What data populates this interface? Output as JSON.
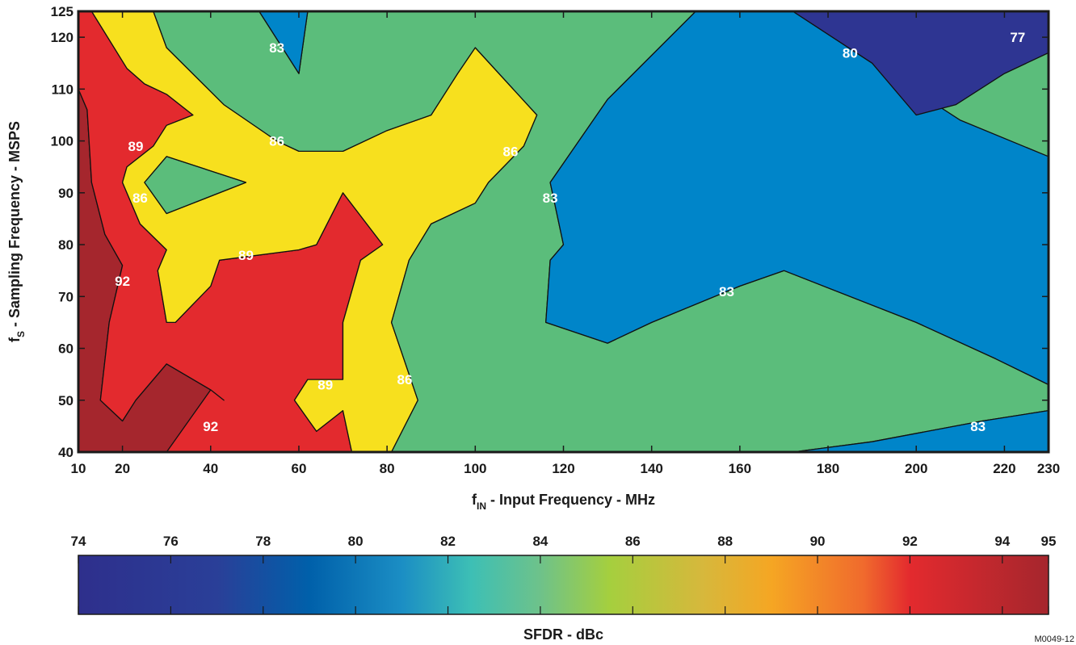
{
  "chart_data": {
    "type": "contour",
    "x_axis": {
      "label_main": "f",
      "label_sub": "IN",
      "label_rest": " - Input Frequency - MHz",
      "range": [
        10,
        230
      ],
      "ticks": [
        10,
        20,
        40,
        60,
        80,
        100,
        120,
        140,
        160,
        180,
        200,
        220,
        230
      ],
      "tick_labels": [
        "10",
        "20",
        "40",
        "60",
        "80",
        "100",
        "120",
        "140",
        "160",
        "180",
        "200",
        "220",
        "230"
      ]
    },
    "y_axis": {
      "label_main": "f",
      "label_sub": "S",
      "label_rest": " - Sampling Frequency - MSPS",
      "range": [
        40,
        125
      ],
      "ticks": [
        40,
        50,
        60,
        70,
        80,
        90,
        100,
        110,
        120,
        125
      ],
      "tick_labels": [
        "40",
        "50",
        "60",
        "70",
        "80",
        "90",
        "100",
        "110",
        "120",
        "125"
      ]
    },
    "contour_levels": [
      77,
      80,
      83,
      86,
      89,
      92
    ],
    "region_colors": {
      "above_92": "#a5262d",
      "89_92": "#e32a2e",
      "86_89": "#f7e01e",
      "83_86": "#5bbd7b",
      "80_83": "#0085c9",
      "77_80": "#2e3592"
    },
    "regions": [
      {
        "level": "above_92",
        "polygons": [
          [
            [
              10,
              40
            ],
            [
              10,
              110
            ],
            [
              12,
              106
            ],
            [
              13,
              92
            ],
            [
              16,
              82
            ],
            [
              20,
              76
            ],
            [
              17,
              65
            ],
            [
              15,
              50
            ],
            [
              20,
              46
            ],
            [
              23,
              50
            ],
            [
              30,
              57
            ],
            [
              40,
              52
            ],
            [
              43,
              50
            ],
            [
              30,
              40
            ]
          ]
        ]
      },
      {
        "level": "89_92",
        "polygons": [
          [
            [
              10,
              125
            ],
            [
              13,
              125
            ],
            [
              21,
              114
            ],
            [
              25,
              111
            ],
            [
              30,
              109
            ],
            [
              36,
              105
            ],
            [
              30,
              103
            ],
            [
              27,
              99
            ],
            [
              21,
              95
            ],
            [
              20,
              92
            ],
            [
              24,
              84
            ],
            [
              30,
              79
            ],
            [
              28,
              75
            ],
            [
              30,
              65
            ],
            [
              32,
              65
            ],
            [
              40,
              72
            ],
            [
              42,
              77
            ],
            [
              60,
              79
            ],
            [
              64,
              80
            ],
            [
              70,
              90
            ],
            [
              79,
              80
            ],
            [
              74,
              77
            ],
            [
              70,
              65
            ],
            [
              70,
              54
            ],
            [
              62,
              54
            ],
            [
              59,
              50
            ],
            [
              64,
              44
            ],
            [
              70,
              48
            ],
            [
              72,
              40
            ],
            [
              30,
              40
            ],
            [
              40,
              52
            ],
            [
              43,
              50
            ],
            [
              40,
              52
            ],
            [
              30,
              57
            ],
            [
              23,
              50
            ],
            [
              20,
              46
            ],
            [
              15,
              50
            ],
            [
              17,
              65
            ],
            [
              20,
              76
            ],
            [
              16,
              82
            ],
            [
              13,
              92
            ],
            [
              12,
              106
            ],
            [
              10,
              110
            ]
          ]
        ]
      },
      {
        "level": "86_89",
        "polygons": [
          [
            [
              13,
              125
            ],
            [
              27,
              125
            ],
            [
              30,
              118
            ],
            [
              43,
              107
            ],
            [
              55,
              100
            ],
            [
              60,
              98
            ],
            [
              70,
              98
            ],
            [
              80,
              102
            ],
            [
              90,
              105
            ],
            [
              96,
              113
            ],
            [
              100,
              118
            ],
            [
              114,
              105
            ],
            [
              111,
              99
            ],
            [
              103,
              92
            ],
            [
              100,
              88
            ],
            [
              90,
              84
            ],
            [
              85,
              77
            ],
            [
              81,
              65
            ],
            [
              87,
              50
            ],
            [
              81,
              40
            ],
            [
              72,
              40
            ],
            [
              70,
              48
            ],
            [
              64,
              44
            ],
            [
              59,
              50
            ],
            [
              62,
              54
            ],
            [
              70,
              54
            ],
            [
              70,
              65
            ],
            [
              74,
              77
            ],
            [
              79,
              80
            ],
            [
              70,
              90
            ],
            [
              64,
              80
            ],
            [
              60,
              79
            ],
            [
              42,
              77
            ],
            [
              40,
              72
            ],
            [
              32,
              65
            ],
            [
              30,
              65
            ],
            [
              28,
              75
            ],
            [
              30,
              79
            ],
            [
              24,
              84
            ],
            [
              20,
              92
            ],
            [
              21,
              95
            ],
            [
              27,
              99
            ],
            [
              30,
              103
            ],
            [
              36,
              105
            ],
            [
              30,
              109
            ],
            [
              25,
              111
            ],
            [
              21,
              114
            ]
          ],
          [
            [
              30,
              97
            ],
            [
              48,
              92
            ],
            [
              30,
              86
            ],
            [
              25,
              92
            ]
          ]
        ]
      },
      {
        "level": "83_86",
        "polygons": [
          [
            [
              27,
              125
            ],
            [
              51,
              125
            ],
            [
              60,
              113
            ],
            [
              62,
              125
            ],
            [
              150,
              125
            ],
            [
              130,
              108
            ],
            [
              117,
              92
            ],
            [
              120,
              80
            ],
            [
              117,
              77
            ],
            [
              116,
              65
            ],
            [
              130,
              61
            ],
            [
              140,
              65
            ],
            [
              160,
              72
            ],
            [
              170,
              75
            ],
            [
              200,
              65
            ],
            [
              218,
              58
            ],
            [
              230,
              53
            ],
            [
              230,
              48
            ],
            [
              215,
              46
            ],
            [
              190,
              42
            ],
            [
              172,
              40
            ],
            [
              81,
              40
            ],
            [
              87,
              50
            ],
            [
              81,
              65
            ],
            [
              85,
              77
            ],
            [
              90,
              84
            ],
            [
              100,
              88
            ],
            [
              103,
              92
            ],
            [
              111,
              99
            ],
            [
              114,
              105
            ],
            [
              100,
              118
            ],
            [
              96,
              113
            ],
            [
              90,
              105
            ],
            [
              80,
              102
            ],
            [
              70,
              98
            ],
            [
              60,
              98
            ],
            [
              55,
              100
            ],
            [
              43,
              107
            ],
            [
              30,
              118
            ]
          ],
          [
            [
              30,
              97
            ],
            [
              25,
              92
            ],
            [
              30,
              86
            ],
            [
              48,
              92
            ]
          ]
        ]
      },
      {
        "level": "80_83",
        "polygons": [
          [
            [
              51,
              125
            ],
            [
              62,
              125
            ],
            [
              60,
              113
            ]
          ],
          [
            [
              150,
              125
            ],
            [
              172,
              125
            ],
            [
              190,
              115
            ],
            [
              210,
              104
            ],
            [
              230,
              97
            ],
            [
              230,
              53
            ],
            [
              218,
              58
            ],
            [
              200,
              65
            ],
            [
              170,
              75
            ],
            [
              160,
              72
            ],
            [
              140,
              65
            ],
            [
              130,
              61
            ],
            [
              116,
              65
            ],
            [
              117,
              77
            ],
            [
              120,
              80
            ],
            [
              117,
              92
            ],
            [
              130,
              108
            ]
          ],
          [
            [
              172,
              40
            ],
            [
              230,
              40
            ],
            [
              230,
              48
            ],
            [
              215,
              46
            ],
            [
              190,
              42
            ]
          ]
        ]
      },
      {
        "level": "77_80",
        "polygons": [
          [
            [
              172,
              125
            ],
            [
              230,
              125
            ],
            [
              230,
              117
            ],
            [
              220,
              113
            ],
            [
              209,
              107
            ],
            [
              200,
              105
            ],
            [
              190,
              115
            ]
          ]
        ]
      }
    ],
    "contour_labels": [
      {
        "text": "83",
        "x": 55,
        "y": 118
      },
      {
        "text": "89",
        "x": 23,
        "y": 99
      },
      {
        "text": "86",
        "x": 55,
        "y": 100
      },
      {
        "text": "86",
        "x": 24,
        "y": 89
      },
      {
        "text": "86",
        "x": 108,
        "y": 98
      },
      {
        "text": "89",
        "x": 48,
        "y": 78
      },
      {
        "text": "92",
        "x": 20,
        "y": 73
      },
      {
        "text": "83",
        "x": 117,
        "y": 89
      },
      {
        "text": "83",
        "x": 157,
        "y": 71
      },
      {
        "text": "89",
        "x": 66,
        "y": 53
      },
      {
        "text": "86",
        "x": 84,
        "y": 54
      },
      {
        "text": "92",
        "x": 40,
        "y": 45
      },
      {
        "text": "80",
        "x": 185,
        "y": 117
      },
      {
        "text": "77",
        "x": 223,
        "y": 120
      },
      {
        "text": "83",
        "x": 214,
        "y": 45
      }
    ],
    "colorbar": {
      "label": "SFDR - dBc",
      "range": [
        74,
        95
      ],
      "ticks": [
        74,
        76,
        78,
        80,
        82,
        84,
        86,
        88,
        90,
        92,
        94,
        95
      ],
      "tick_labels": [
        "74",
        "76",
        "78",
        "80",
        "82",
        "84",
        "86",
        "88",
        "90",
        "92",
        "94",
        "95"
      ],
      "gradient_stops": [
        {
          "value": 74,
          "color": "#2e2f8c"
        },
        {
          "value": 77,
          "color": "#2a3f98"
        },
        {
          "value": 79,
          "color": "#0060aa"
        },
        {
          "value": 81,
          "color": "#1b8ec4"
        },
        {
          "value": 82.5,
          "color": "#3dbfb5"
        },
        {
          "value": 84,
          "color": "#6ec28a"
        },
        {
          "value": 85.5,
          "color": "#a5cf3e"
        },
        {
          "value": 87.5,
          "color": "#d6b83c"
        },
        {
          "value": 89,
          "color": "#f5a623"
        },
        {
          "value": 91,
          "color": "#f06a2d"
        },
        {
          "value": 92,
          "color": "#e32a2e"
        },
        {
          "value": 95,
          "color": "#a5262d"
        }
      ]
    },
    "figure_id": "M0049-12"
  }
}
